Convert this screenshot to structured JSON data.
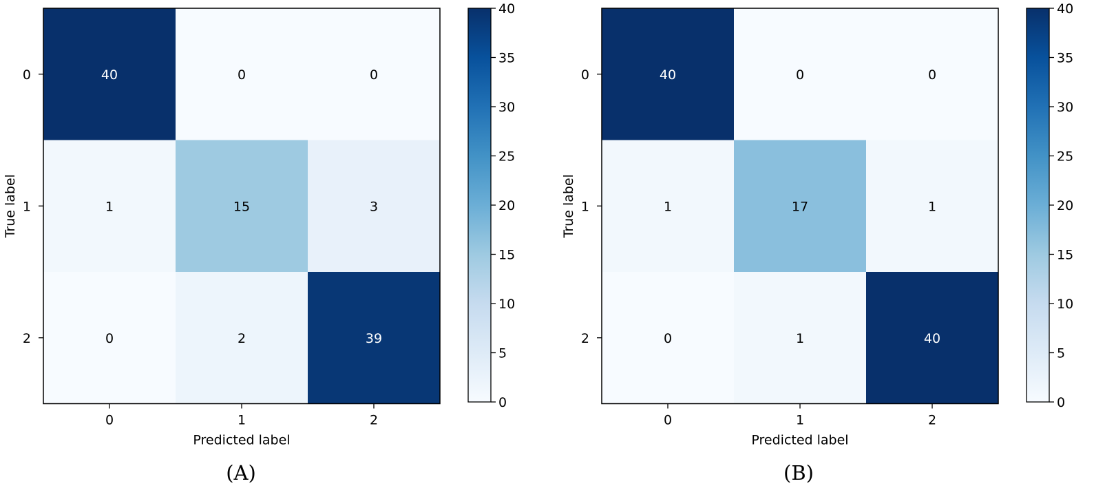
{
  "chart_data": [
    {
      "type": "heatmap",
      "panel_label": "(A)",
      "xlabel": "Predicted label",
      "ylabel": "True label",
      "x_ticks": [
        "0",
        "1",
        "2"
      ],
      "y_ticks": [
        "0",
        "1",
        "2"
      ],
      "matrix": [
        [
          40,
          0,
          0
        ],
        [
          1,
          15,
          3
        ],
        [
          0,
          2,
          39
        ]
      ],
      "colorbar": {
        "min": 0,
        "max": 40,
        "ticks": [
          "0",
          "5",
          "10",
          "15",
          "20",
          "25",
          "30",
          "35",
          "40"
        ]
      },
      "colormap": "Blues",
      "grid": false
    },
    {
      "type": "heatmap",
      "panel_label": "(B)",
      "xlabel": "Predicted label",
      "ylabel": "True label",
      "x_ticks": [
        "0",
        "1",
        "2"
      ],
      "y_ticks": [
        "0",
        "1",
        "2"
      ],
      "matrix": [
        [
          40,
          0,
          0
        ],
        [
          1,
          17,
          1
        ],
        [
          0,
          1,
          40
        ]
      ],
      "colorbar": {
        "min": 0,
        "max": 40,
        "ticks": [
          "0",
          "5",
          "10",
          "15",
          "20",
          "25",
          "30",
          "35",
          "40"
        ]
      },
      "colormap": "Blues",
      "grid": false
    }
  ]
}
